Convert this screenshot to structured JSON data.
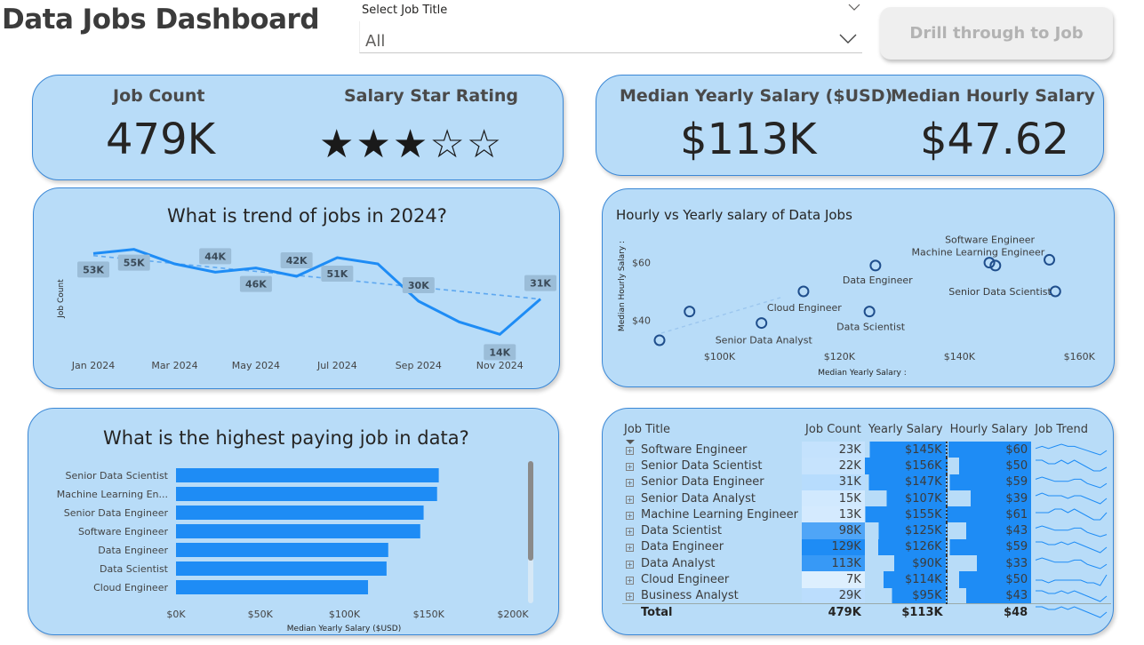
{
  "header": {
    "title": "Data Jobs Dashboard",
    "slicer_label": "Select Job Title",
    "slicer_value": "All",
    "drill_button": "Drill through to Job"
  },
  "kpi_left": {
    "job_count_label": "Job Count",
    "job_count_value": "479K",
    "rating_label": "Salary Star Rating",
    "rating_stars": 3,
    "rating_max": 5
  },
  "kpi_right": {
    "yearly_label": "Median Yearly Salary ($USD)",
    "yearly_value": "$113K",
    "hourly_label": "Median Hourly Salary",
    "hourly_value": "$47.62"
  },
  "colors": {
    "card_bg": "#b8dcf8",
    "card_border": "#3b88d6",
    "accent": "#1e8cf5",
    "trend": "#58a8f5"
  },
  "charts": {
    "trend": {
      "title": "What is trend of jobs in 2024?",
      "ylabel": "Job Count",
      "xlabels": [
        "Jan 2024",
        "Mar 2024",
        "May 2024",
        "Jul 2024",
        "Sep 2024",
        "Nov 2024"
      ],
      "data_labels": [
        "53K",
        "55K",
        "44K",
        "46K",
        "42K",
        "51K",
        "30K",
        "14K",
        "31K"
      ]
    },
    "scatter": {
      "title": "Hourly vs Yearly salary of Data Jobs",
      "xlabel": "Median Yearly Salary :",
      "ylabel": "Median Hourly Salary :",
      "xticks": [
        "$100K",
        "$120K",
        "$140K",
        "$160K"
      ],
      "yticks": [
        "$60",
        "$40"
      ]
    },
    "bar": {
      "title": "What is the highest paying job in data?",
      "xlabel": "Median Yearly Salary ($USD)",
      "xticks": [
        "$0K",
        "$50K",
        "$100K",
        "$150K",
        "$200K"
      ]
    }
  },
  "chart_data": [
    {
      "type": "line",
      "title": "What is trend of jobs in 2024?",
      "xlabel": "",
      "ylabel": "Job Count",
      "x": [
        "Jan 2024",
        "Feb 2024",
        "Mar 2024",
        "Apr 2024",
        "May 2024",
        "Jun 2024",
        "Jul 2024",
        "Aug 2024",
        "Sep 2024",
        "Oct 2024",
        "Nov 2024",
        "Dec 2024"
      ],
      "values": [
        53,
        55,
        48,
        44,
        46,
        42,
        51,
        48,
        30,
        20,
        14,
        31
      ],
      "labeled": [
        53,
        55,
        null,
        44,
        46,
        42,
        51,
        null,
        30,
        null,
        14,
        31
      ],
      "ylim": [
        0,
        60
      ],
      "trendline": [
        52,
        31
      ]
    },
    {
      "type": "scatter",
      "title": "Hourly vs Yearly salary of Data Jobs",
      "xlabel": "Median Yearly Salary :",
      "ylabel": "Median Hourly Salary :",
      "xlim": [
        90,
        165
      ],
      "ylim": [
        33,
        67
      ],
      "points": [
        {
          "x": 145,
          "y": 60,
          "label": "Software Engineer"
        },
        {
          "x": 155,
          "y": 61,
          "label": "Machine Learning Engineer"
        },
        {
          "x": 146,
          "y": 59,
          "label": ""
        },
        {
          "x": 126,
          "y": 59,
          "label": "Data Engineer"
        },
        {
          "x": 156,
          "y": 50,
          "label": "Senior Data Scientist"
        },
        {
          "x": 114,
          "y": 50,
          "label": "Cloud Engineer"
        },
        {
          "x": 125,
          "y": 43,
          "label": "Data Scientist"
        },
        {
          "x": 107,
          "y": 39,
          "label": "Senior Data Analyst"
        },
        {
          "x": 95,
          "y": 43,
          "label": ""
        },
        {
          "x": 90,
          "y": 33,
          "label": ""
        }
      ]
    },
    {
      "type": "bar",
      "title": "What is the highest paying job in data?",
      "xlabel": "Median Yearly Salary ($USD)",
      "ylabel": "",
      "categories": [
        "Senior Data Scientist",
        "Machine Learning En...",
        "Senior Data Engineer",
        "Software Engineer",
        "Data Engineer",
        "Data Scientist",
        "Cloud Engineer"
      ],
      "values": [
        156,
        155,
        147,
        145,
        126,
        125,
        114
      ],
      "xlim": [
        0,
        200
      ]
    },
    {
      "type": "table",
      "columns": [
        "Job Title",
        "Job Count",
        "Yearly Salary",
        "Hourly Salary",
        "Job Trend"
      ],
      "rows": [
        {
          "title": "Software Engineer",
          "count": "23K",
          "yearly": "$145K",
          "hourly": "$60",
          "count_n": 23,
          "yearly_n": 145,
          "hourly_n": 60,
          "trend": [
            5,
            6,
            5,
            6,
            7,
            6,
            6,
            5,
            4,
            3,
            2,
            4
          ]
        },
        {
          "title": "Senior Data Scientist",
          "count": "22K",
          "yearly": "$156K",
          "hourly": "$50",
          "count_n": 22,
          "yearly_n": 156,
          "hourly_n": 50,
          "trend": [
            6,
            6,
            5,
            5,
            6,
            5,
            6,
            5,
            4,
            3,
            3,
            4
          ]
        },
        {
          "title": "Senior Data Engineer",
          "count": "31K",
          "yearly": "$147K",
          "hourly": "$59",
          "count_n": 31,
          "yearly_n": 147,
          "hourly_n": 59,
          "trend": [
            6,
            7,
            6,
            5,
            5,
            5,
            6,
            6,
            4,
            3,
            2,
            4
          ]
        },
        {
          "title": "Senior Data Analyst",
          "count": "15K",
          "yearly": "$107K",
          "hourly": "$39",
          "count_n": 15,
          "yearly_n": 107,
          "hourly_n": 39,
          "trend": [
            5,
            6,
            5,
            5,
            5,
            4,
            5,
            5,
            4,
            3,
            2,
            4
          ]
        },
        {
          "title": "Machine Learning Engineer",
          "count": "13K",
          "yearly": "$155K",
          "hourly": "$61",
          "count_n": 13,
          "yearly_n": 155,
          "hourly_n": 61,
          "trend": [
            5,
            5,
            5,
            6,
            6,
            5,
            6,
            5,
            4,
            3,
            3,
            5
          ]
        },
        {
          "title": "Data Scientist",
          "count": "98K",
          "yearly": "$125K",
          "hourly": "$43",
          "count_n": 98,
          "yearly_n": 125,
          "hourly_n": 43,
          "trend": [
            6,
            7,
            6,
            5,
            5,
            5,
            6,
            6,
            4,
            3,
            2,
            3
          ]
        },
        {
          "title": "Data Engineer",
          "count": "129K",
          "yearly": "$126K",
          "hourly": "$59",
          "count_n": 129,
          "yearly_n": 126,
          "hourly_n": 59,
          "trend": [
            6,
            6,
            5,
            5,
            6,
            5,
            6,
            5,
            4,
            3,
            2,
            4
          ]
        },
        {
          "title": "Data Analyst",
          "count": "113K",
          "yearly": "$90K",
          "hourly": "$33",
          "count_n": 113,
          "yearly_n": 90,
          "hourly_n": 33,
          "trend": [
            6,
            7,
            6,
            5,
            5,
            5,
            6,
            6,
            4,
            3,
            2,
            4
          ]
        },
        {
          "title": "Cloud Engineer",
          "count": "7K",
          "yearly": "$114K",
          "hourly": "$50",
          "count_n": 7,
          "yearly_n": 114,
          "hourly_n": 50,
          "trend": [
            5,
            5,
            4,
            5,
            5,
            5,
            5,
            5,
            4,
            4,
            3,
            7
          ]
        },
        {
          "title": "Business Analyst",
          "count": "29K",
          "yearly": "$95K",
          "hourly": "$43",
          "count_n": 29,
          "yearly_n": 95,
          "hourly_n": 43,
          "trend": [
            6,
            6,
            5,
            5,
            6,
            5,
            6,
            5,
            4,
            3,
            2,
            4
          ]
        }
      ],
      "total": {
        "title": "Total",
        "count": "479K",
        "yearly": "$113K",
        "hourly": "$48",
        "trend": [
          6,
          6,
          5,
          5,
          6,
          5,
          6,
          5,
          4,
          3,
          2,
          4
        ]
      }
    }
  ]
}
